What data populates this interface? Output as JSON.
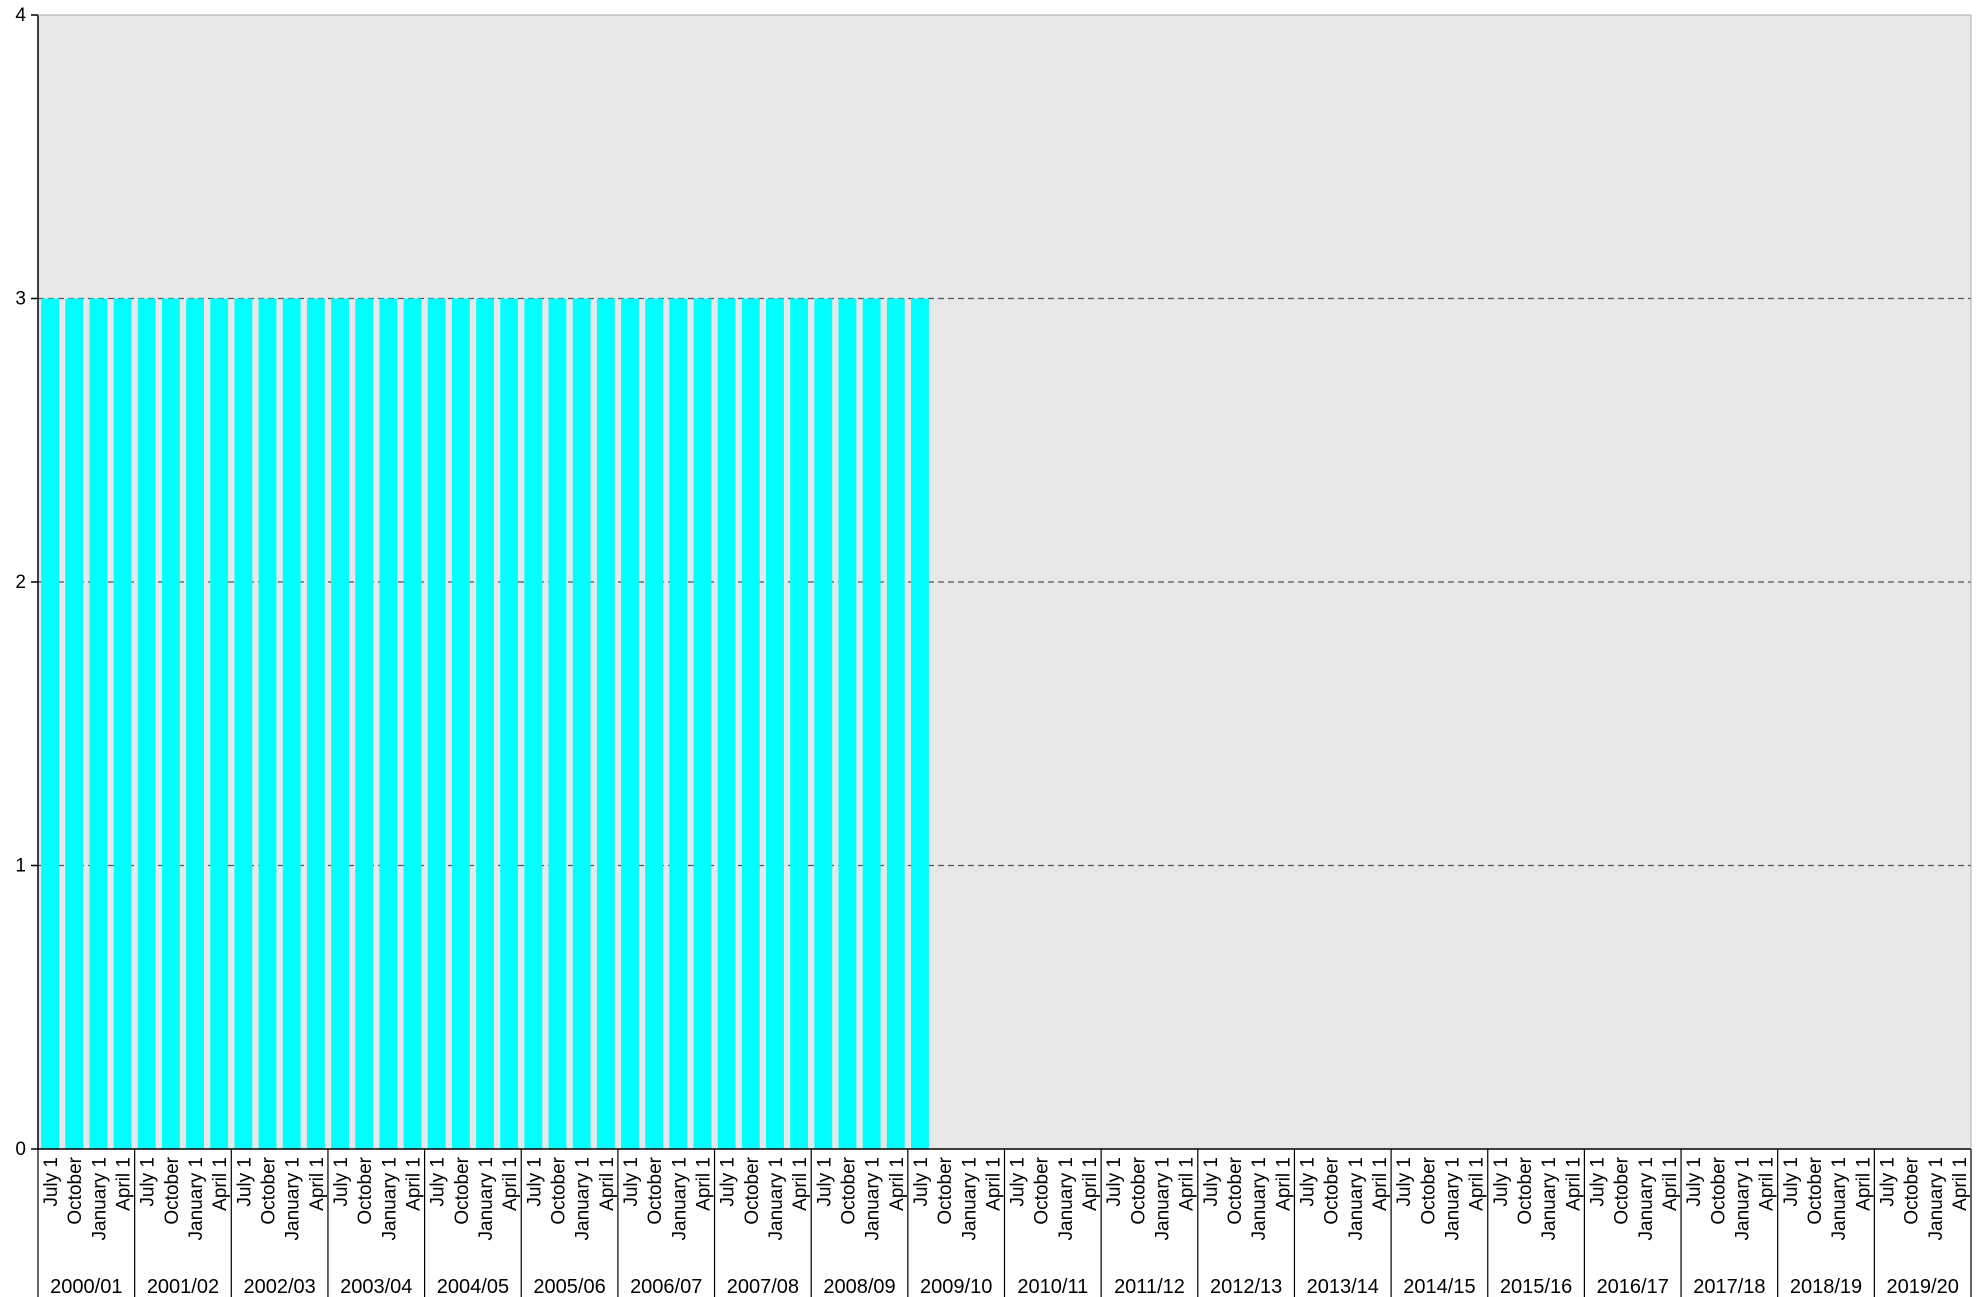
{
  "chart_data": {
    "type": "bar",
    "title": "",
    "xlabel": "",
    "ylabel": "",
    "ylim": [
      0,
      4
    ],
    "yticks": [
      0,
      1,
      2,
      3,
      4
    ],
    "grid": {
      "y": true,
      "style": "dashed"
    },
    "legend": "none",
    "colors": {
      "bar": "#00FFFF",
      "plot_background": "#E8E8E8",
      "grid": "#555555",
      "axis": "#000000"
    },
    "quarters": [
      "July 1",
      "October",
      "January 1",
      "April 1"
    ],
    "years": [
      "2000/01",
      "2001/02",
      "2002/03",
      "2003/04",
      "2004/05",
      "2005/06",
      "2006/07",
      "2007/08",
      "2008/09",
      "2009/10",
      "2010/11",
      "2011/12",
      "2012/13",
      "2013/14",
      "2014/15",
      "2015/16",
      "2016/17",
      "2017/18",
      "2018/19",
      "2019/20"
    ],
    "series": [
      {
        "values": [
          3,
          3,
          3,
          3,
          3,
          3,
          3,
          3,
          3,
          3,
          3,
          3,
          3,
          3,
          3,
          3,
          3,
          3,
          3,
          3,
          3,
          3,
          3,
          3,
          3,
          3,
          3,
          3,
          3,
          3,
          3,
          3,
          3,
          3,
          3,
          3,
          3,
          null,
          null,
          null,
          null,
          null,
          null,
          null,
          null,
          null,
          null,
          null,
          null,
          null,
          null,
          null,
          null,
          null,
          null,
          null,
          null,
          null,
          null,
          null,
          null,
          null,
          null,
          null,
          null,
          null,
          null,
          null,
          null,
          null,
          null,
          null,
          null,
          null,
          null,
          null,
          null,
          null,
          null,
          null
        ]
      }
    ]
  }
}
